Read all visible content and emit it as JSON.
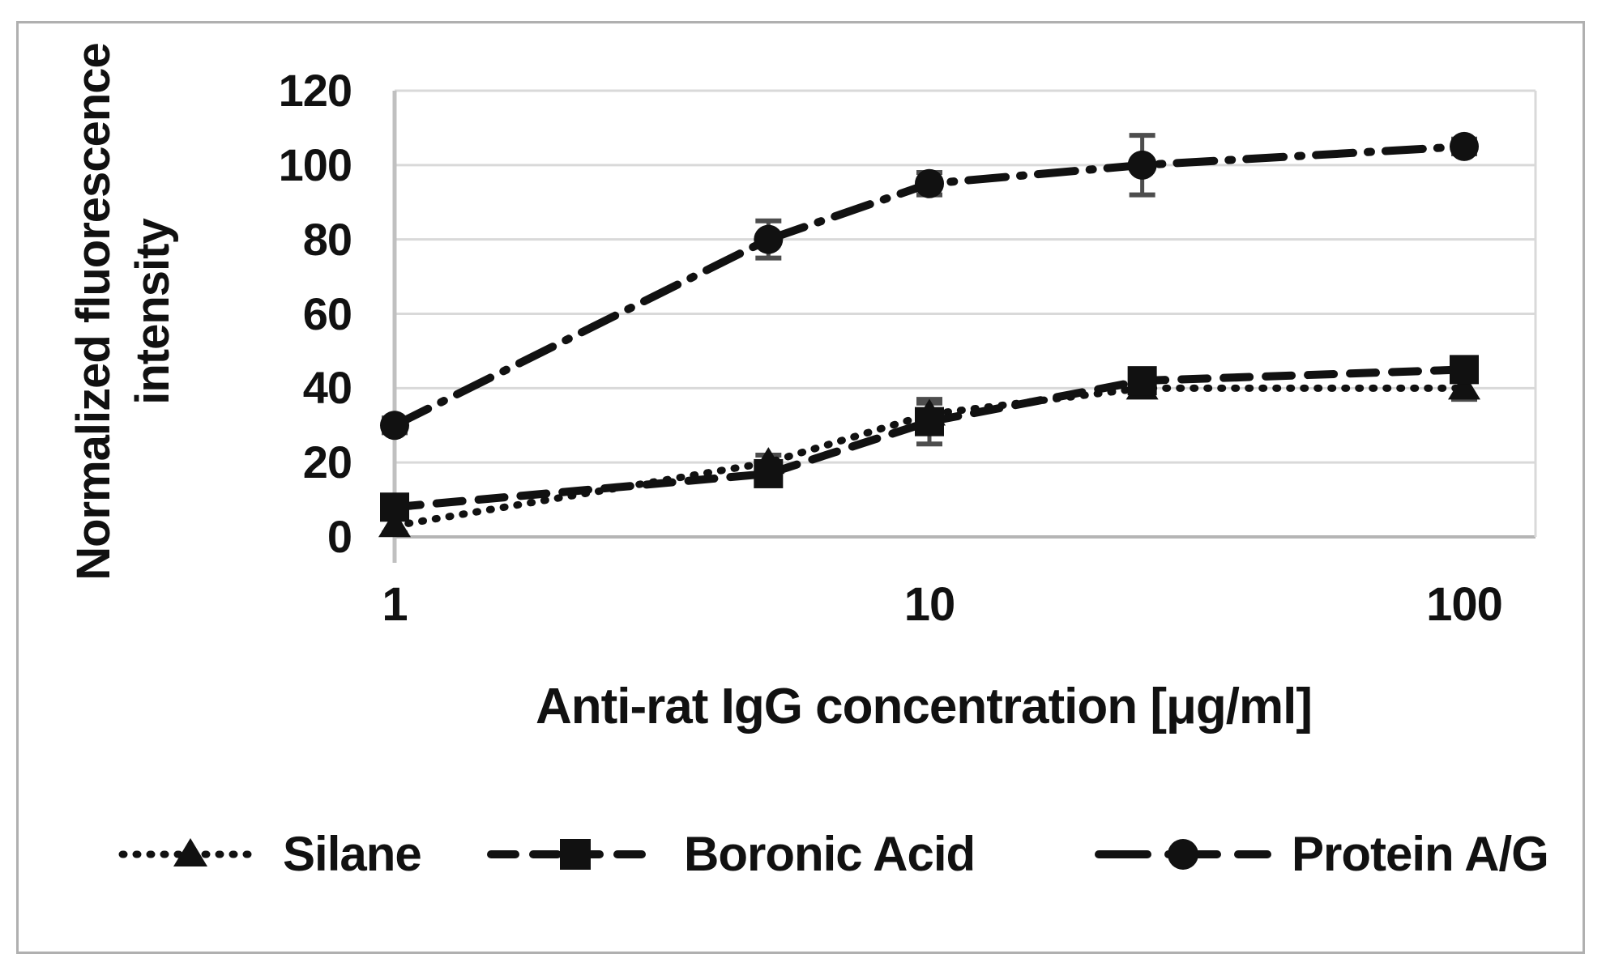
{
  "figure": {
    "background": "#ffffff",
    "border_color": "#b0b0b0"
  },
  "chart_data": {
    "type": "line",
    "x_scale": "log",
    "x": [
      1,
      5,
      10,
      25,
      100
    ],
    "x_ticks": [
      1,
      10,
      100
    ],
    "y_ticks": [
      0,
      20,
      40,
      60,
      80,
      100,
      120
    ],
    "xlim": [
      1,
      100
    ],
    "ylim": [
      0,
      120
    ],
    "grid": true,
    "title": "",
    "xlabel": "Anti-rat IgG concentration [μg/ml]",
    "ylabel": "Normalized fluorescence intensity",
    "ylabel_lines": [
      "Normalized fluorescence",
      "intensity"
    ],
    "legend_position": "bottom",
    "series": [
      {
        "name": "Silane",
        "marker": "triangle",
        "line_style": "dotted",
        "values": [
          3,
          20,
          33,
          40,
          40
        ],
        "errors": [
          2,
          2,
          3,
          2,
          3
        ]
      },
      {
        "name": "Boronic Acid",
        "marker": "square",
        "line_style": "dashed",
        "values": [
          8,
          17,
          31,
          42,
          45
        ],
        "errors": [
          2,
          3,
          6,
          3,
          3
        ]
      },
      {
        "name": "Protein A/G",
        "marker": "circle",
        "line_style": "dash-dot",
        "values": [
          30,
          80,
          95,
          100,
          105
        ],
        "errors": [
          2,
          5,
          3,
          8,
          2
        ]
      }
    ],
    "colors": {
      "series": "#111111",
      "gridline": "#d9d9d9",
      "zero_line": "#b5b5b5",
      "axis_line": "#c0c0c0",
      "error_bar": "#4d4d4d",
      "text": "#111111"
    }
  }
}
